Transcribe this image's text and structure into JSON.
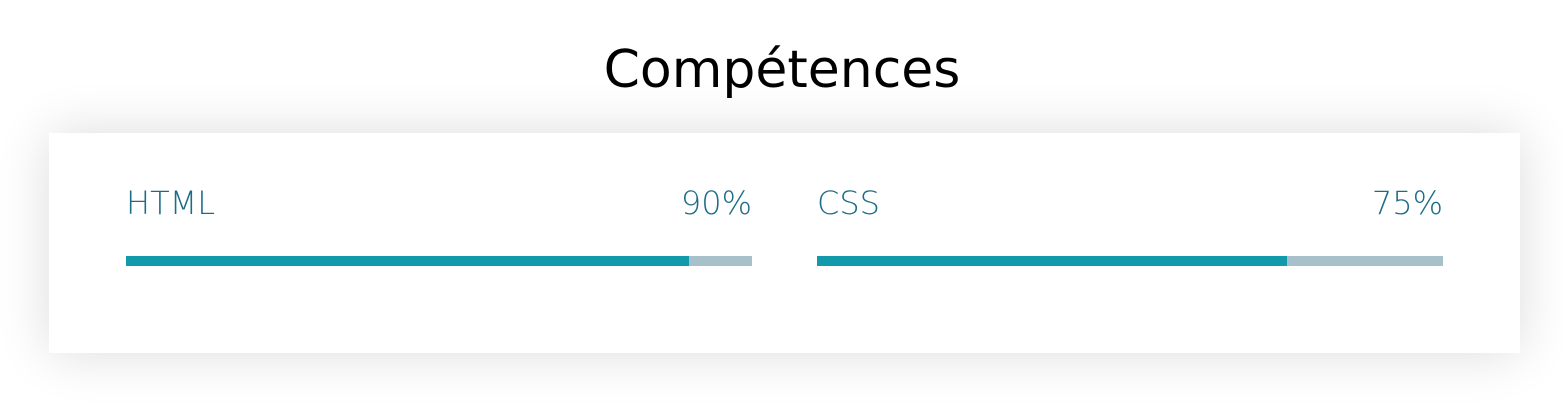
{
  "section": {
    "title": "Compétences"
  },
  "colors": {
    "label": "#1d6c87",
    "bar_fill": "#139aaa",
    "bar_track": "#a8c0ca"
  },
  "skills": [
    {
      "name": "HTML",
      "percent_label": "90%",
      "level": 0.9
    },
    {
      "name": "CSS",
      "percent_label": "75%",
      "level": 0.75
    }
  ]
}
